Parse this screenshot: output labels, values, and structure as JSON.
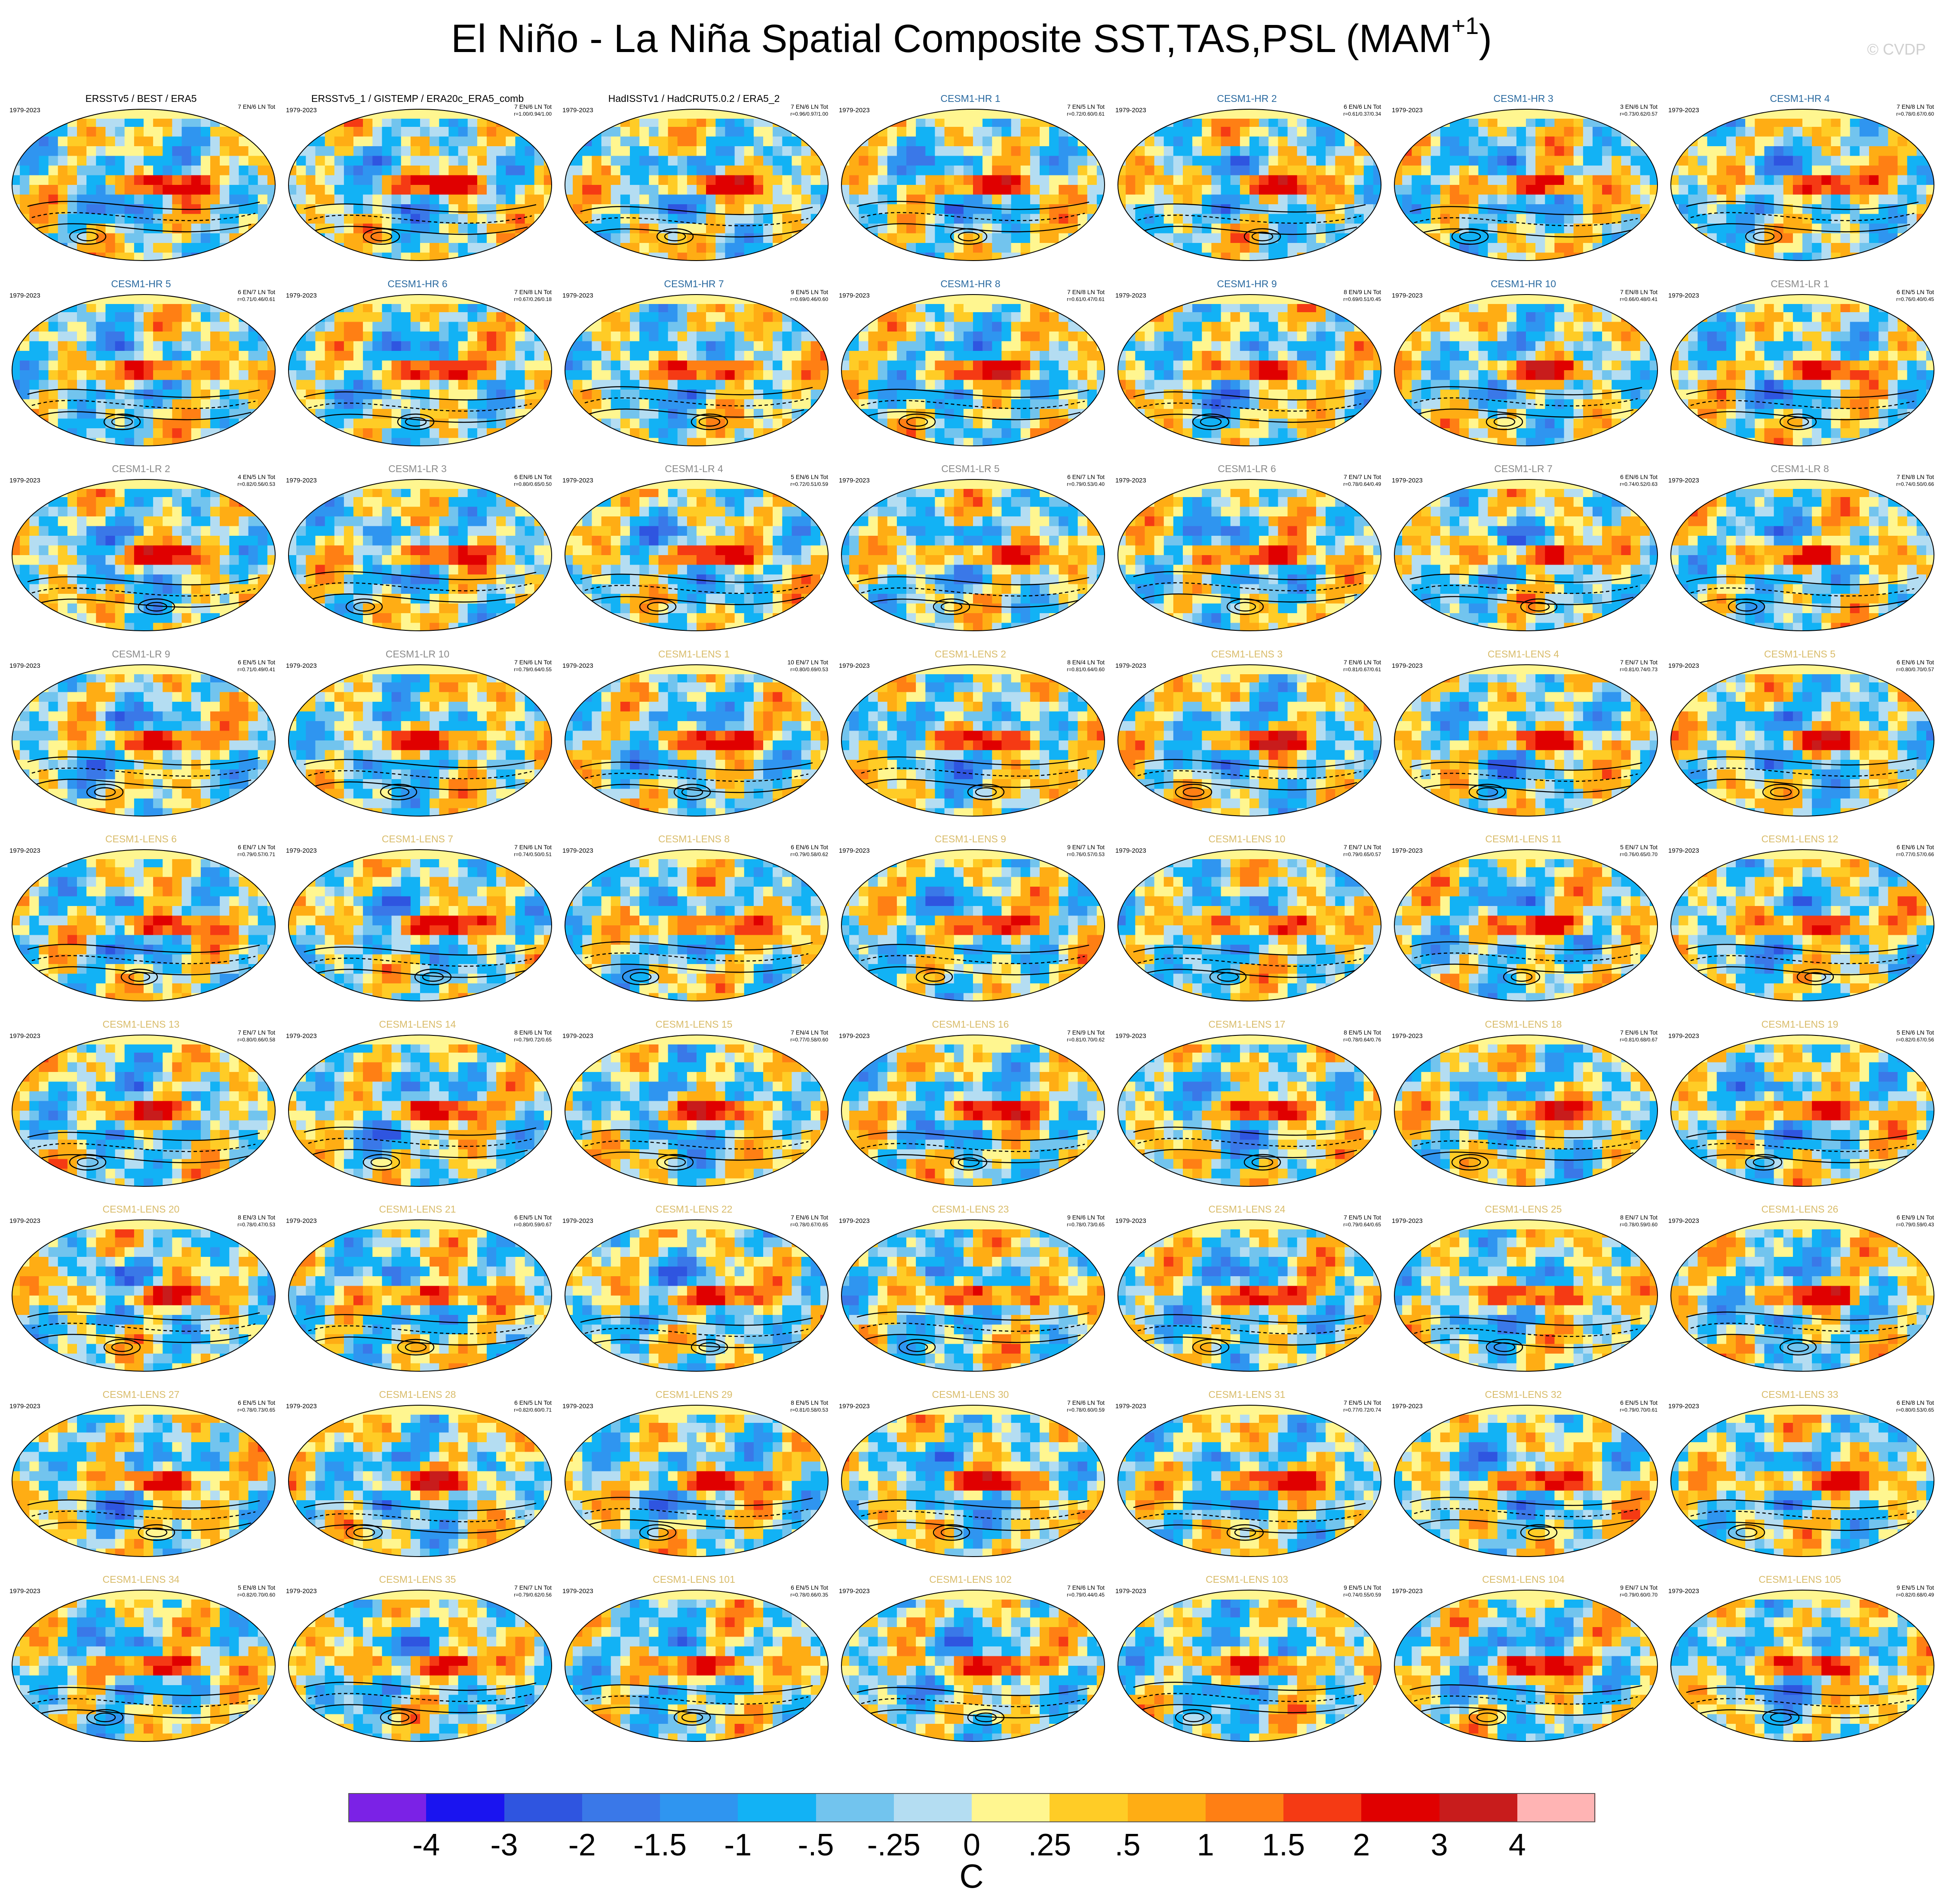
{
  "title": "El Niño - La Niña Spatial Composite SST,TAS,PSL (MAM",
  "title_sup": "+1",
  "title_tail": ")",
  "watermark": "© CVDP",
  "colors": [
    "#7b22e6",
    "#1a14f0",
    "#2f55e0",
    "#3a78e8",
    "#2f95f0",
    "#12b2f5",
    "#72c4ee",
    "#b4ddf2",
    "#fff690",
    "#ffcc26",
    "#ffad14",
    "#ff7f14",
    "#f53a14",
    "#e00000",
    "#c81c1c",
    "#ffb4b4"
  ],
  "chart_data": {
    "type": "heatmap",
    "title": "El Niño - La Niña Spatial Composite SST,TAS,PSL (MAM+1)",
    "colorbar": {
      "labels": [
        "-4",
        "-3",
        "-2",
        "-1.5",
        "-1",
        "-.5",
        "-.25",
        "0",
        ".25",
        ".5",
        "1",
        "1.5",
        "2",
        "3",
        "4"
      ],
      "unit": "C"
    },
    "panels": [
      {
        "name": "ERSSTv5 / BEST / ERA5",
        "period": "1979-2023",
        "stat1": "7 EN/6 LN Tot",
        "stat2": "",
        "group": "obs"
      },
      {
        "name": "ERSSTv5_1 / GISTEMP / ERA20c_ERA5_comb",
        "period": "1979-2023",
        "stat1": "7 EN/6 LN Tot",
        "stat2": "r=1.00/0.94/1.00",
        "group": "obs"
      },
      {
        "name": "HadISSTv1 / HadCRUT5.0.2 / ERA5_2",
        "period": "1979-2023",
        "stat1": "7 EN/6 LN Tot",
        "stat2": "r=0.96/0.97/1.00",
        "group": "obs"
      },
      {
        "name": "CESM1-HR 1",
        "period": "1979-2023",
        "stat1": "7 EN/5 LN Tot",
        "stat2": "r=0.72/0.60/0.61",
        "group": "hr"
      },
      {
        "name": "CESM1-HR 2",
        "period": "1979-2023",
        "stat1": "6 EN/6 LN Tot",
        "stat2": "r=0.61/0.37/0.34",
        "group": "hr"
      },
      {
        "name": "CESM1-HR 3",
        "period": "1979-2023",
        "stat1": "3 EN/6 LN Tot",
        "stat2": "r=0.73/0.62/0.57",
        "group": "hr"
      },
      {
        "name": "CESM1-HR 4",
        "period": "1979-2023",
        "stat1": "7 EN/8 LN Tot",
        "stat2": "r=0.78/0.67/0.60",
        "group": "hr"
      },
      {
        "name": "CESM1-HR 5",
        "period": "1979-2023",
        "stat1": "6 EN/7 LN Tot",
        "stat2": "r=0.71/0.46/0.61",
        "group": "hr"
      },
      {
        "name": "CESM1-HR 6",
        "period": "1979-2023",
        "stat1": "7 EN/8 LN Tot",
        "stat2": "r=0.67/0.26/0.18",
        "group": "hr"
      },
      {
        "name": "CESM1-HR 7",
        "period": "1979-2023",
        "stat1": "9 EN/5 LN Tot",
        "stat2": "r=0.69/0.46/0.60",
        "group": "hr"
      },
      {
        "name": "CESM1-HR 8",
        "period": "1979-2023",
        "stat1": "7 EN/8 LN Tot",
        "stat2": "r=0.61/0.47/0.61",
        "group": "hr"
      },
      {
        "name": "CESM1-HR 9",
        "period": "1979-2023",
        "stat1": "8 EN/9 LN Tot",
        "stat2": "r=0.69/0.51/0.45",
        "group": "hr"
      },
      {
        "name": "CESM1-HR 10",
        "period": "1979-2023",
        "stat1": "7 EN/8 LN Tot",
        "stat2": "r=0.66/0.48/0.41",
        "group": "hr"
      },
      {
        "name": "CESM1-LR 1",
        "period": "1979-2023",
        "stat1": "6 EN/5 LN Tot",
        "stat2": "r=0.76/0.40/0.45",
        "group": "lr"
      },
      {
        "name": "CESM1-LR 2",
        "period": "1979-2023",
        "stat1": "4 EN/5 LN Tot",
        "stat2": "r=0.82/0.56/0.53",
        "group": "lr"
      },
      {
        "name": "CESM1-LR 3",
        "period": "1979-2023",
        "stat1": "6 EN/6 LN Tot",
        "stat2": "r=0.80/0.65/0.50",
        "group": "lr"
      },
      {
        "name": "CESM1-LR 4",
        "period": "1979-2023",
        "stat1": "5 EN/6 LN Tot",
        "stat2": "r=0.72/0.51/0.59",
        "group": "lr"
      },
      {
        "name": "CESM1-LR 5",
        "period": "1979-2023",
        "stat1": "6 EN/7 LN Tot",
        "stat2": "r=0.79/0.53/0.40",
        "group": "lr"
      },
      {
        "name": "CESM1-LR 6",
        "period": "1979-2023",
        "stat1": "7 EN/7 LN Tot",
        "stat2": "r=0.78/0.64/0.49",
        "group": "lr"
      },
      {
        "name": "CESM1-LR 7",
        "period": "1979-2023",
        "stat1": "6 EN/6 LN Tot",
        "stat2": "r=0.74/0.52/0.63",
        "group": "lr"
      },
      {
        "name": "CESM1-LR 8",
        "period": "1979-2023",
        "stat1": "7 EN/8 LN Tot",
        "stat2": "r=0.74/0.50/0.66",
        "group": "lr"
      },
      {
        "name": "CESM1-LR 9",
        "period": "1979-2023",
        "stat1": "6 EN/5 LN Tot",
        "stat2": "r=0.71/0.49/0.41",
        "group": "lr"
      },
      {
        "name": "CESM1-LR 10",
        "period": "1979-2023",
        "stat1": "7 EN/6 LN Tot",
        "stat2": "r=0.79/0.64/0.55",
        "group": "lr"
      },
      {
        "name": "CESM1-LENS 1",
        "period": "1979-2023",
        "stat1": "10 EN/7 LN Tot",
        "stat2": "r=0.80/0.69/0.53",
        "group": "lens"
      },
      {
        "name": "CESM1-LENS 2",
        "period": "1979-2023",
        "stat1": "8 EN/4 LN Tot",
        "stat2": "r=0.81/0.64/0.60",
        "group": "lens"
      },
      {
        "name": "CESM1-LENS 3",
        "period": "1979-2023",
        "stat1": "7 EN/6 LN Tot",
        "stat2": "r=0.81/0.67/0.61",
        "group": "lens"
      },
      {
        "name": "CESM1-LENS 4",
        "period": "1979-2023",
        "stat1": "7 EN/7 LN Tot",
        "stat2": "r=0.81/0.74/0.73",
        "group": "lens"
      },
      {
        "name": "CESM1-LENS 5",
        "period": "1979-2023",
        "stat1": "6 EN/6 LN Tot",
        "stat2": "r=0.80/0.70/0.57",
        "group": "lens"
      },
      {
        "name": "CESM1-LENS 6",
        "period": "1979-2023",
        "stat1": "6 EN/7 LN Tot",
        "stat2": "r=0.79/0.57/0.71",
        "group": "lens"
      },
      {
        "name": "CESM1-LENS 7",
        "period": "1979-2023",
        "stat1": "7 EN/6 LN Tot",
        "stat2": "r=0.74/0.50/0.51",
        "group": "lens"
      },
      {
        "name": "CESM1-LENS 8",
        "period": "1979-2023",
        "stat1": "6 EN/6 LN Tot",
        "stat2": "r=0.79/0.58/0.62",
        "group": "lens"
      },
      {
        "name": "CESM1-LENS 9",
        "period": "1979-2023",
        "stat1": "9 EN/7 LN Tot",
        "stat2": "r=0.76/0.57/0.53",
        "group": "lens"
      },
      {
        "name": "CESM1-LENS 10",
        "period": "1979-2023",
        "stat1": "7 EN/7 LN Tot",
        "stat2": "r=0.79/0.65/0.57",
        "group": "lens"
      },
      {
        "name": "CESM1-LENS 11",
        "period": "1979-2023",
        "stat1": "5 EN/7 LN Tot",
        "stat2": "r=0.76/0.65/0.70",
        "group": "lens"
      },
      {
        "name": "CESM1-LENS 12",
        "period": "1979-2023",
        "stat1": "6 EN/6 LN Tot",
        "stat2": "r=0.77/0.57/0.66",
        "group": "lens"
      },
      {
        "name": "CESM1-LENS 13",
        "period": "1979-2023",
        "stat1": "7 EN/7 LN Tot",
        "stat2": "r=0.80/0.66/0.58",
        "group": "lens"
      },
      {
        "name": "CESM1-LENS 14",
        "period": "1979-2023",
        "stat1": "8 EN/6 LN Tot",
        "stat2": "r=0.79/0.72/0.65",
        "group": "lens"
      },
      {
        "name": "CESM1-LENS 15",
        "period": "1979-2023",
        "stat1": "7 EN/4 LN Tot",
        "stat2": "r=0.77/0.58/0.60",
        "group": "lens"
      },
      {
        "name": "CESM1-LENS 16",
        "period": "1979-2023",
        "stat1": "7 EN/9 LN Tot",
        "stat2": "r=0.81/0.70/0.62",
        "group": "lens"
      },
      {
        "name": "CESM1-LENS 17",
        "period": "1979-2023",
        "stat1": "8 EN/5 LN Tot",
        "stat2": "r=0.78/0.64/0.76",
        "group": "lens"
      },
      {
        "name": "CESM1-LENS 18",
        "period": "1979-2023",
        "stat1": "7 EN/6 LN Tot",
        "stat2": "r=0.81/0.68/0.67",
        "group": "lens"
      },
      {
        "name": "CESM1-LENS 19",
        "period": "1979-2023",
        "stat1": "5 EN/6 LN Tot",
        "stat2": "r=0.82/0.67/0.56",
        "group": "lens"
      },
      {
        "name": "CESM1-LENS 20",
        "period": "1979-2023",
        "stat1": "8 EN/3 LN Tot",
        "stat2": "r=0.78/0.47/0.53",
        "group": "lens"
      },
      {
        "name": "CESM1-LENS 21",
        "period": "1979-2023",
        "stat1": "6 EN/5 LN Tot",
        "stat2": "r=0.80/0.59/0.67",
        "group": "lens"
      },
      {
        "name": "CESM1-LENS 22",
        "period": "1979-2023",
        "stat1": "7 EN/6 LN Tot",
        "stat2": "r=0.78/0.67/0.65",
        "group": "lens"
      },
      {
        "name": "CESM1-LENS 23",
        "period": "1979-2023",
        "stat1": "9 EN/6 LN Tot",
        "stat2": "r=0.78/0.73/0.65",
        "group": "lens"
      },
      {
        "name": "CESM1-LENS 24",
        "period": "1979-2023",
        "stat1": "7 EN/5 LN Tot",
        "stat2": "r=0.79/0.64/0.65",
        "group": "lens"
      },
      {
        "name": "CESM1-LENS 25",
        "period": "1979-2023",
        "stat1": "8 EN/7 LN Tot",
        "stat2": "r=0.78/0.59/0.60",
        "group": "lens"
      },
      {
        "name": "CESM1-LENS 26",
        "period": "1979-2023",
        "stat1": "6 EN/9 LN Tot",
        "stat2": "r=0.79/0.59/0.43",
        "group": "lens"
      },
      {
        "name": "CESM1-LENS 27",
        "period": "1979-2023",
        "stat1": "6 EN/5 LN Tot",
        "stat2": "r=0.78/0.73/0.65",
        "group": "lens"
      },
      {
        "name": "CESM1-LENS 28",
        "period": "1979-2023",
        "stat1": "6 EN/5 LN Tot",
        "stat2": "r=0.82/0.60/0.71",
        "group": "lens"
      },
      {
        "name": "CESM1-LENS 29",
        "period": "1979-2023",
        "stat1": "8 EN/5 LN Tot",
        "stat2": "r=0.81/0.58/0.53",
        "group": "lens"
      },
      {
        "name": "CESM1-LENS 30",
        "period": "1979-2023",
        "stat1": "7 EN/6 LN Tot",
        "stat2": "r=0.78/0.60/0.59",
        "group": "lens"
      },
      {
        "name": "CESM1-LENS 31",
        "period": "1979-2023",
        "stat1": "7 EN/5 LN Tot",
        "stat2": "r=0.77/0.72/0.74",
        "group": "lens"
      },
      {
        "name": "CESM1-LENS 32",
        "period": "1979-2023",
        "stat1": "6 EN/5 LN Tot",
        "stat2": "r=0.79/0.70/0.61",
        "group": "lens"
      },
      {
        "name": "CESM1-LENS 33",
        "period": "1979-2023",
        "stat1": "6 EN/8 LN Tot",
        "stat2": "r=0.80/0.53/0.65",
        "group": "lens"
      },
      {
        "name": "CESM1-LENS 34",
        "period": "1979-2023",
        "stat1": "5 EN/8 LN Tot",
        "stat2": "r=0.82/0.70/0.60",
        "group": "lens"
      },
      {
        "name": "CESM1-LENS 35",
        "period": "1979-2023",
        "stat1": "7 EN/7 LN Tot",
        "stat2": "r=0.79/0.62/0.56",
        "group": "lens"
      },
      {
        "name": "CESM1-LENS 101",
        "period": "1979-2023",
        "stat1": "6 EN/5 LN Tot",
        "stat2": "r=0.78/0.66/0.35",
        "group": "lens"
      },
      {
        "name": "CESM1-LENS 102",
        "period": "1979-2023",
        "stat1": "7 EN/6 LN Tot",
        "stat2": "r=0.79/0.44/0.45",
        "group": "lens"
      },
      {
        "name": "CESM1-LENS 103",
        "period": "1979-2023",
        "stat1": "9 EN/5 LN Tot",
        "stat2": "r=0.74/0.55/0.59",
        "group": "lens"
      },
      {
        "name": "CESM1-LENS 104",
        "period": "1979-2023",
        "stat1": "9 EN/7 LN Tot",
        "stat2": "r=0.79/0.60/0.70",
        "group": "lens"
      },
      {
        "name": "CESM1-LENS 105",
        "period": "1979-2023",
        "stat1": "9 EN/5 LN Tot",
        "stat2": "r=0.82/0.68/0.49",
        "group": "lens"
      }
    ]
  }
}
